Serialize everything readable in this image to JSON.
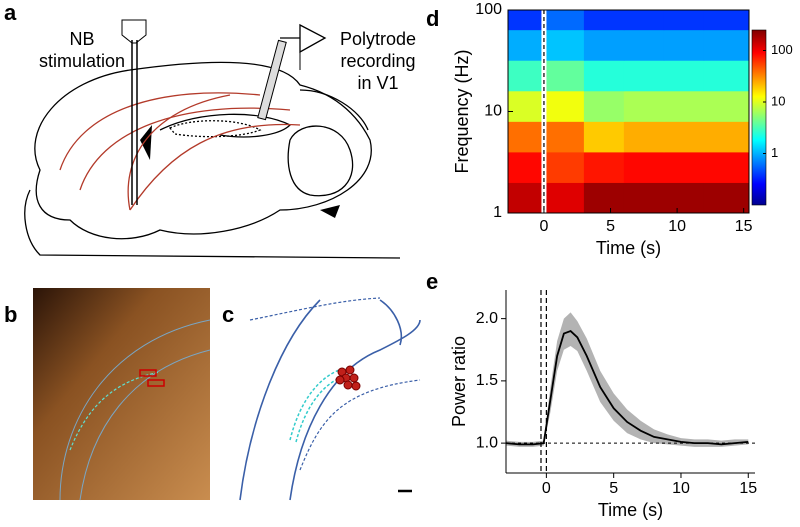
{
  "panel_labels": [
    "a",
    "b",
    "c",
    "d",
    "e"
  ],
  "diagram": {
    "stimulation_label": [
      "NB",
      "stimulation"
    ],
    "recording_label": [
      "Polytrode",
      "recording",
      "in V1"
    ]
  },
  "chart_data": [
    {
      "type": "heatmap",
      "xlabel": "Time (s)",
      "ylabel": "Frequency (Hz)",
      "x_edges": [
        -2.7,
        0,
        3,
        6,
        9,
        12,
        15.4
      ],
      "y_edges": [
        1,
        2,
        4,
        8,
        16,
        32,
        64,
        100
      ],
      "values": [
        [
          150,
          120,
          200,
          200,
          200,
          200
        ],
        [
          90,
          60,
          80,
          90,
          90,
          90
        ],
        [
          40,
          40,
          20,
          25,
          25,
          25
        ],
        [
          10,
          12,
          6,
          7,
          7,
          7
        ],
        [
          3,
          4,
          2.5,
          2.5,
          2.5,
          2.5
        ],
        [
          1,
          1.2,
          0.9,
          0.9,
          0.9,
          0.9
        ],
        [
          0.4,
          0.6,
          0.4,
          0.4,
          0.4,
          0.4
        ]
      ],
      "xlim": [
        -2.7,
        15.4
      ],
      "ylim": [
        1,
        100
      ],
      "log_y": true,
      "xticks": [
        0,
        5,
        10,
        15
      ],
      "yticks": [
        1,
        10,
        100
      ],
      "markers_x": [
        0
      ],
      "colorbar": {
        "lim": [
          0.1,
          250
        ],
        "ticks": [
          1,
          10,
          100
        ],
        "colormap": "jet",
        "log": true
      }
    },
    {
      "type": "line",
      "xlabel": "Time (s)",
      "ylabel": "Power ratio",
      "x": [
        -3,
        -2,
        -1,
        -0.2,
        0.3,
        0.8,
        1.3,
        1.8,
        2.3,
        3,
        4,
        5,
        6,
        7,
        8,
        9,
        10,
        11,
        12,
        13,
        14,
        15
      ],
      "values": [
        1.0,
        0.99,
        0.99,
        1.0,
        1.35,
        1.7,
        1.88,
        1.9,
        1.85,
        1.7,
        1.45,
        1.28,
        1.17,
        1.1,
        1.05,
        1.03,
        1.01,
        1.0,
        1.0,
        0.99,
        1.0,
        1.01
      ],
      "band_low": [
        0.98,
        0.97,
        0.97,
        0.98,
        1.25,
        1.58,
        1.75,
        1.78,
        1.74,
        1.58,
        1.33,
        1.18,
        1.08,
        1.03,
        1.0,
        0.99,
        0.98,
        0.97,
        0.97,
        0.97,
        0.98,
        0.99
      ],
      "band_high": [
        1.02,
        1.01,
        1.01,
        1.02,
        1.45,
        1.82,
        2.0,
        2.05,
        1.98,
        1.84,
        1.58,
        1.4,
        1.27,
        1.18,
        1.11,
        1.07,
        1.04,
        1.03,
        1.03,
        1.02,
        1.03,
        1.03
      ],
      "color": "#000000",
      "band_color": "#b3b3b3",
      "xlim": [
        -3,
        15.5
      ],
      "ylim": [
        0.76,
        2.23
      ],
      "xticks": [
        0,
        5,
        10,
        15
      ],
      "yticks": [
        {
          "value": 1,
          "label": "1.0"
        },
        {
          "value": 1.5,
          "label": "1.5"
        },
        {
          "value": 2,
          "label": "2.0"
        }
      ],
      "hline": 1,
      "vlines": [
        -0.4,
        0
      ]
    }
  ]
}
